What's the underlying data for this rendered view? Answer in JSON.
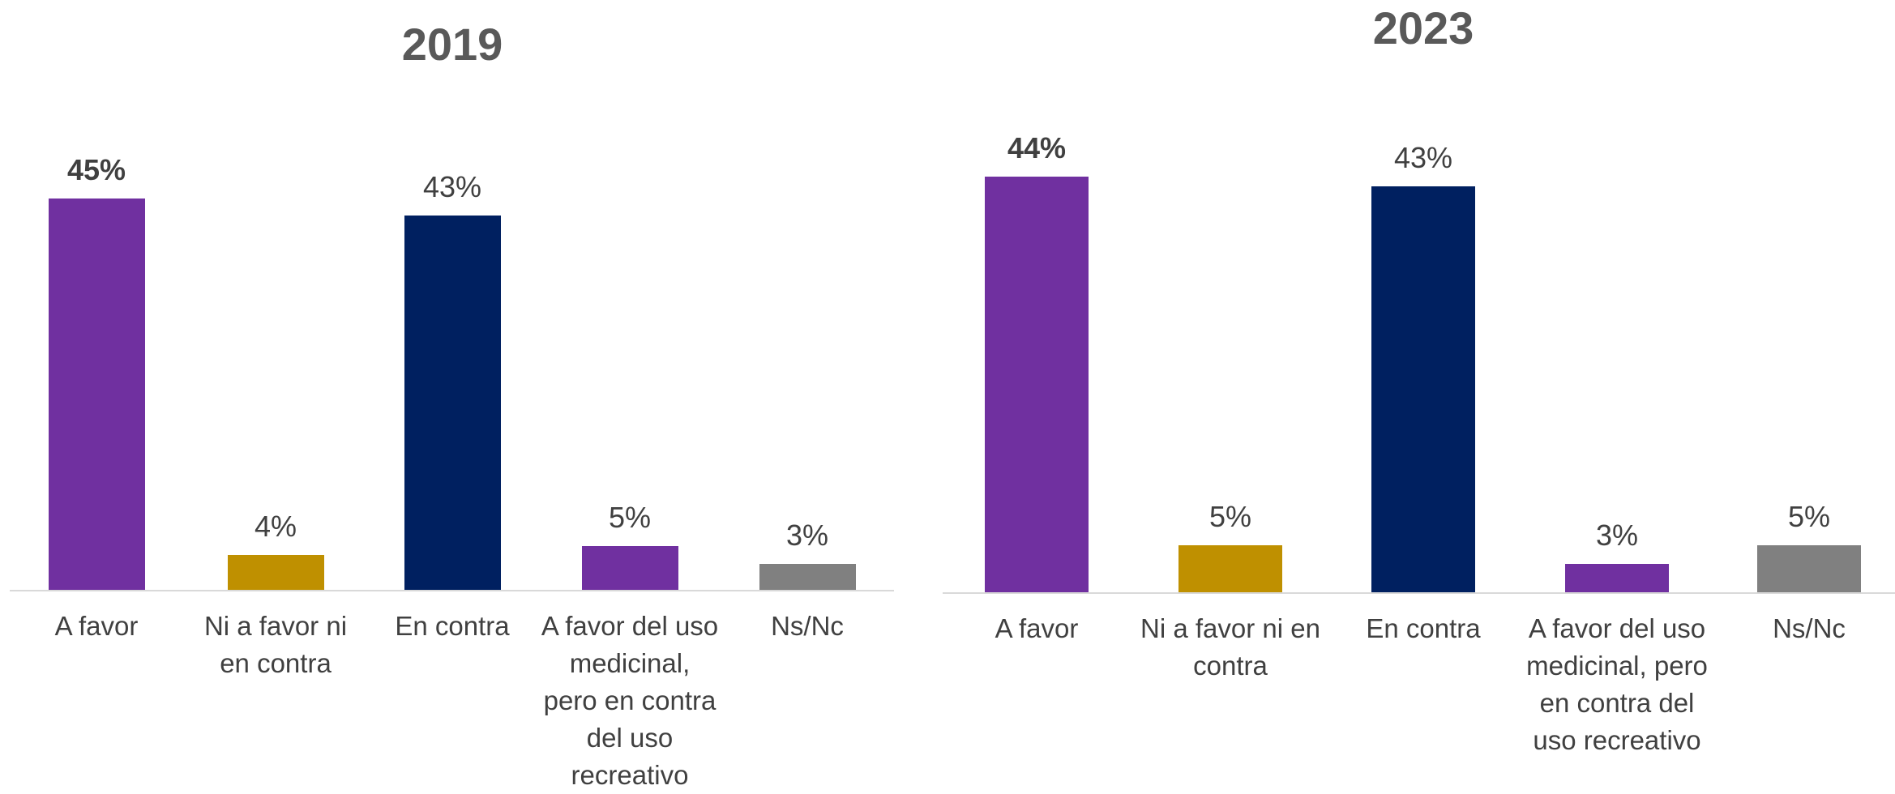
{
  "chart_data": [
    {
      "type": "bar",
      "title": "2019",
      "categories": [
        "A favor",
        "Ni a favor ni en contra",
        "En contra",
        "A favor del uso medicinal, pero en contra del uso recreativo",
        "Ns/Nc"
      ],
      "values": [
        45,
        4,
        43,
        5,
        3
      ],
      "value_labels": [
        "45%",
        "4%",
        "43%",
        "5%",
        "3%"
      ],
      "colors": [
        "#7030a0",
        "#bf9000",
        "#002060",
        "#7030a0",
        "#808080"
      ]
    },
    {
      "type": "bar",
      "title": "2023",
      "categories": [
        "A favor",
        "Ni a favor ni en contra",
        "En contra",
        "A favor del uso medicinal, pero en contra del uso recreativo",
        "Ns/Nc"
      ],
      "values": [
        44,
        5,
        43,
        3,
        5
      ],
      "value_labels": [
        "44%",
        "5%",
        "43%",
        "3%",
        "5%"
      ],
      "colors": [
        "#7030a0",
        "#bf9000",
        "#002060",
        "#7030a0",
        "#808080"
      ]
    }
  ]
}
